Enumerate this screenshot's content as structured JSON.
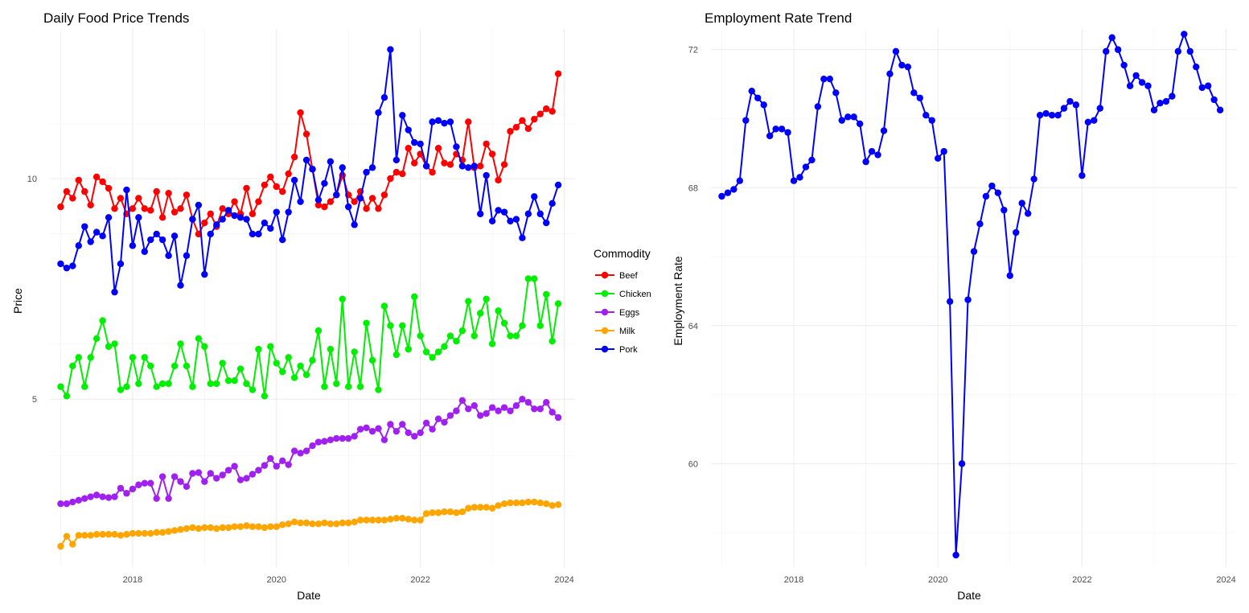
{
  "chart_data": [
    {
      "type": "line",
      "title": "Daily Food Price Trends",
      "xlabel": "Date",
      "ylabel": "Price",
      "x_tick_labels": [
        "2018",
        "2020",
        "2022",
        "2024"
      ],
      "y_tick_labels": [
        "5",
        "10"
      ],
      "y_scale": "log",
      "grid": true,
      "legend_title": "Commodity",
      "legend_position": "right",
      "x": [
        "2017-01",
        "2017-02",
        "2017-03",
        "2017-04",
        "2017-05",
        "2017-06",
        "2017-07",
        "2017-08",
        "2017-09",
        "2017-10",
        "2017-11",
        "2017-12",
        "2018-01",
        "2018-02",
        "2018-03",
        "2018-04",
        "2018-05",
        "2018-06",
        "2018-07",
        "2018-08",
        "2018-09",
        "2018-10",
        "2018-11",
        "2018-12",
        "2019-01",
        "2019-02",
        "2019-03",
        "2019-04",
        "2019-05",
        "2019-06",
        "2019-07",
        "2019-08",
        "2019-09",
        "2019-10",
        "2019-11",
        "2019-12",
        "2020-01",
        "2020-02",
        "2020-03",
        "2020-04",
        "2020-05",
        "2020-06",
        "2020-07",
        "2020-08",
        "2020-09",
        "2020-10",
        "2020-11",
        "2020-12",
        "2021-01",
        "2021-02",
        "2021-03",
        "2021-04",
        "2021-05",
        "2021-06",
        "2021-07",
        "2021-08",
        "2021-09",
        "2021-10",
        "2021-11",
        "2021-12",
        "2022-01",
        "2022-02",
        "2022-03",
        "2022-04",
        "2022-05",
        "2022-06",
        "2022-07",
        "2022-08",
        "2022-09",
        "2022-10",
        "2022-11",
        "2022-12",
        "2023-01",
        "2023-02",
        "2023-03",
        "2023-04",
        "2023-05",
        "2023-06",
        "2023-07",
        "2023-08",
        "2023-09",
        "2023-10",
        "2023-11",
        "2023-12"
      ],
      "series": [
        {
          "name": "Beef",
          "color": "#ff0000",
          "values": [
            9.15,
            9.6,
            9.4,
            9.95,
            9.6,
            9.2,
            10.05,
            9.9,
            9.7,
            9.1,
            9.4,
            8.95,
            9.1,
            9.4,
            9.1,
            9.05,
            9.6,
            8.85,
            9.55,
            9.0,
            9.1,
            9.5,
            8.8,
            8.4,
            8.7,
            8.95,
            8.6,
            9.1,
            8.95,
            9.3,
            8.95,
            9.7,
            8.95,
            9.3,
            9.8,
            10.05,
            9.75,
            9.6,
            10.15,
            10.7,
            12.3,
            11.5,
            10.3,
            9.2,
            9.15,
            9.3,
            9.5,
            10.1,
            9.5,
            9.3,
            9.6,
            9.1,
            9.4,
            9.1,
            9.5,
            10.0,
            10.2,
            10.15,
            11.0,
            10.5,
            10.8,
            10.4,
            10.2,
            11.0,
            10.5,
            10.45,
            10.8,
            10.6,
            11.95,
            10.35,
            10.4,
            11.15,
            10.8,
            9.95,
            10.45,
            11.6,
            11.75,
            12.0,
            11.7,
            12.05,
            12.25,
            12.45,
            12.35,
            13.9
          ]
        },
        {
          "name": "Chicken",
          "color": "#00ee00",
          "values": [
            5.2,
            5.05,
            5.55,
            5.7,
            5.2,
            5.7,
            6.05,
            6.4,
            5.9,
            5.95,
            5.15,
            5.2,
            5.7,
            5.25,
            5.7,
            5.55,
            5.2,
            5.25,
            5.25,
            5.55,
            5.95,
            5.55,
            5.2,
            6.05,
            5.9,
            5.25,
            5.25,
            5.6,
            5.3,
            5.3,
            5.5,
            5.25,
            5.15,
            5.85,
            5.05,
            5.9,
            5.6,
            5.45,
            5.7,
            5.35,
            5.55,
            5.4,
            5.65,
            6.2,
            5.2,
            5.85,
            5.25,
            6.85,
            5.2,
            5.8,
            5.2,
            6.35,
            5.65,
            5.15,
            6.7,
            6.3,
            5.75,
            6.3,
            5.85,
            6.9,
            6.1,
            5.8,
            5.7,
            5.8,
            5.9,
            6.1,
            6.0,
            6.2,
            6.8,
            6.1,
            6.55,
            6.85,
            5.95,
            6.6,
            6.35,
            6.1,
            6.1,
            6.3,
            7.3,
            7.3,
            6.3,
            6.95,
            6.0,
            6.75
          ]
        },
        {
          "name": "Eggs",
          "color": "#a020f0",
          "values": [
            3.6,
            3.6,
            3.62,
            3.64,
            3.66,
            3.68,
            3.7,
            3.68,
            3.67,
            3.68,
            3.78,
            3.72,
            3.77,
            3.82,
            3.84,
            3.84,
            3.66,
            3.92,
            3.66,
            3.92,
            3.86,
            3.8,
            3.96,
            3.97,
            3.86,
            3.96,
            3.9,
            3.94,
            4.0,
            4.05,
            3.88,
            3.9,
            3.95,
            4.0,
            4.06,
            4.15,
            4.05,
            4.12,
            4.07,
            4.25,
            4.22,
            4.25,
            4.32,
            4.37,
            4.38,
            4.4,
            4.42,
            4.42,
            4.42,
            4.45,
            4.55,
            4.57,
            4.52,
            4.56,
            4.4,
            4.62,
            4.52,
            4.62,
            4.5,
            4.45,
            4.5,
            4.64,
            4.55,
            4.7,
            4.65,
            4.75,
            4.82,
            4.98,
            4.85,
            4.9,
            4.75,
            4.78,
            4.87,
            4.82,
            4.87,
            4.82,
            4.9,
            5.0,
            4.95,
            4.85,
            4.85,
            4.95,
            4.8,
            4.72
          ]
        },
        {
          "name": "Milk",
          "color": "#ffa500",
          "values": [
            3.15,
            3.25,
            3.17,
            3.26,
            3.26,
            3.26,
            3.27,
            3.27,
            3.27,
            3.27,
            3.26,
            3.27,
            3.28,
            3.28,
            3.28,
            3.28,
            3.29,
            3.29,
            3.3,
            3.31,
            3.32,
            3.33,
            3.34,
            3.33,
            3.34,
            3.34,
            3.33,
            3.34,
            3.34,
            3.35,
            3.35,
            3.36,
            3.35,
            3.35,
            3.34,
            3.35,
            3.35,
            3.37,
            3.38,
            3.4,
            3.39,
            3.39,
            3.38,
            3.38,
            3.39,
            3.38,
            3.38,
            3.39,
            3.39,
            3.4,
            3.42,
            3.42,
            3.42,
            3.42,
            3.42,
            3.43,
            3.44,
            3.44,
            3.43,
            3.42,
            3.42,
            3.49,
            3.5,
            3.5,
            3.51,
            3.51,
            3.5,
            3.51,
            3.55,
            3.56,
            3.56,
            3.56,
            3.55,
            3.58,
            3.6,
            3.61,
            3.61,
            3.61,
            3.62,
            3.62,
            3.61,
            3.6,
            3.58,
            3.59
          ]
        },
        {
          "name": "Pork",
          "color": "#0000ff",
          "values": [
            7.65,
            7.55,
            7.6,
            8.1,
            8.6,
            8.2,
            8.45,
            8.35,
            8.85,
            7.0,
            7.65,
            9.65,
            8.1,
            8.85,
            7.95,
            8.25,
            8.4,
            8.25,
            7.85,
            8.35,
            7.15,
            7.85,
            8.8,
            9.2,
            7.4,
            8.4,
            8.65,
            8.8,
            9.05,
            8.9,
            8.85,
            8.8,
            8.4,
            8.4,
            8.7,
            8.55,
            9.0,
            8.25,
            9.0,
            9.95,
            9.3,
            10.6,
            10.3,
            9.35,
            9.85,
            10.55,
            9.5,
            10.35,
            9.15,
            8.65,
            9.4,
            10.2,
            10.35,
            12.3,
            12.9,
            15.0,
            10.6,
            12.2,
            11.65,
            11.2,
            11.15,
            10.4,
            11.95,
            12.0,
            11.9,
            11.95,
            11.05,
            10.4,
            10.35,
            10.4,
            8.95,
            10.1,
            8.75,
            9.05,
            9.0,
            8.75,
            8.8,
            8.3,
            8.95,
            9.45,
            8.95,
            8.7,
            9.25,
            9.8
          ]
        }
      ]
    },
    {
      "type": "line",
      "title": "Employment Rate Trend",
      "xlabel": "Date",
      "ylabel": "Employment Rate",
      "x_tick_labels": [
        "2018",
        "2020",
        "2022",
        "2024"
      ],
      "y_tick_labels": [
        "60",
        "64",
        "68",
        "72"
      ],
      "ylim": [
        57.0,
        72.6
      ],
      "grid": true,
      "x": [
        "2017-01",
        "2017-02",
        "2017-03",
        "2017-04",
        "2017-05",
        "2017-06",
        "2017-07",
        "2017-08",
        "2017-09",
        "2017-10",
        "2017-11",
        "2017-12",
        "2018-01",
        "2018-02",
        "2018-03",
        "2018-04",
        "2018-05",
        "2018-06",
        "2018-07",
        "2018-08",
        "2018-09",
        "2018-10",
        "2018-11",
        "2018-12",
        "2019-01",
        "2019-02",
        "2019-03",
        "2019-04",
        "2019-05",
        "2019-06",
        "2019-07",
        "2019-08",
        "2019-09",
        "2019-10",
        "2019-11",
        "2019-12",
        "2020-01",
        "2020-02",
        "2020-03",
        "2020-04",
        "2020-05",
        "2020-06",
        "2020-07",
        "2020-08",
        "2020-09",
        "2020-10",
        "2020-11",
        "2020-12",
        "2021-01",
        "2021-02",
        "2021-03",
        "2021-04",
        "2021-05",
        "2021-06",
        "2021-07",
        "2021-08",
        "2021-09",
        "2021-10",
        "2021-11",
        "2021-12",
        "2022-01",
        "2022-02",
        "2022-03",
        "2022-04",
        "2022-05",
        "2022-06",
        "2022-07",
        "2022-08",
        "2022-09",
        "2022-10",
        "2022-11",
        "2022-12",
        "2023-01",
        "2023-02",
        "2023-03",
        "2023-04",
        "2023-05",
        "2023-06",
        "2023-07",
        "2023-08",
        "2023-09",
        "2023-10",
        "2023-11",
        "2023-12"
      ],
      "series": [
        {
          "color": "#0000ff",
          "values": [
            67.75,
            67.85,
            67.95,
            68.2,
            69.95,
            70.8,
            70.6,
            70.4,
            69.5,
            69.7,
            69.7,
            69.6,
            68.2,
            68.3,
            68.6,
            68.8,
            70.35,
            71.15,
            71.15,
            70.75,
            69.95,
            70.05,
            70.05,
            69.85,
            68.75,
            69.05,
            68.95,
            69.65,
            71.3,
            71.95,
            71.55,
            71.5,
            70.75,
            70.6,
            70.1,
            69.95,
            68.85,
            69.05,
            64.7,
            57.35,
            60.0,
            64.75,
            66.15,
            66.95,
            67.75,
            68.05,
            67.85,
            67.35,
            65.45,
            66.7,
            67.55,
            67.25,
            68.25,
            70.1,
            70.15,
            70.1,
            70.1,
            70.3,
            70.5,
            70.4,
            68.35,
            69.9,
            69.95,
            70.3,
            71.95,
            72.35,
            72.0,
            71.55,
            70.95,
            71.25,
            71.05,
            70.95,
            70.25,
            70.45,
            70.5,
            70.65,
            71.95,
            72.45,
            71.95,
            71.5,
            70.9,
            70.95,
            70.55,
            70.25
          ]
        }
      ]
    }
  ]
}
